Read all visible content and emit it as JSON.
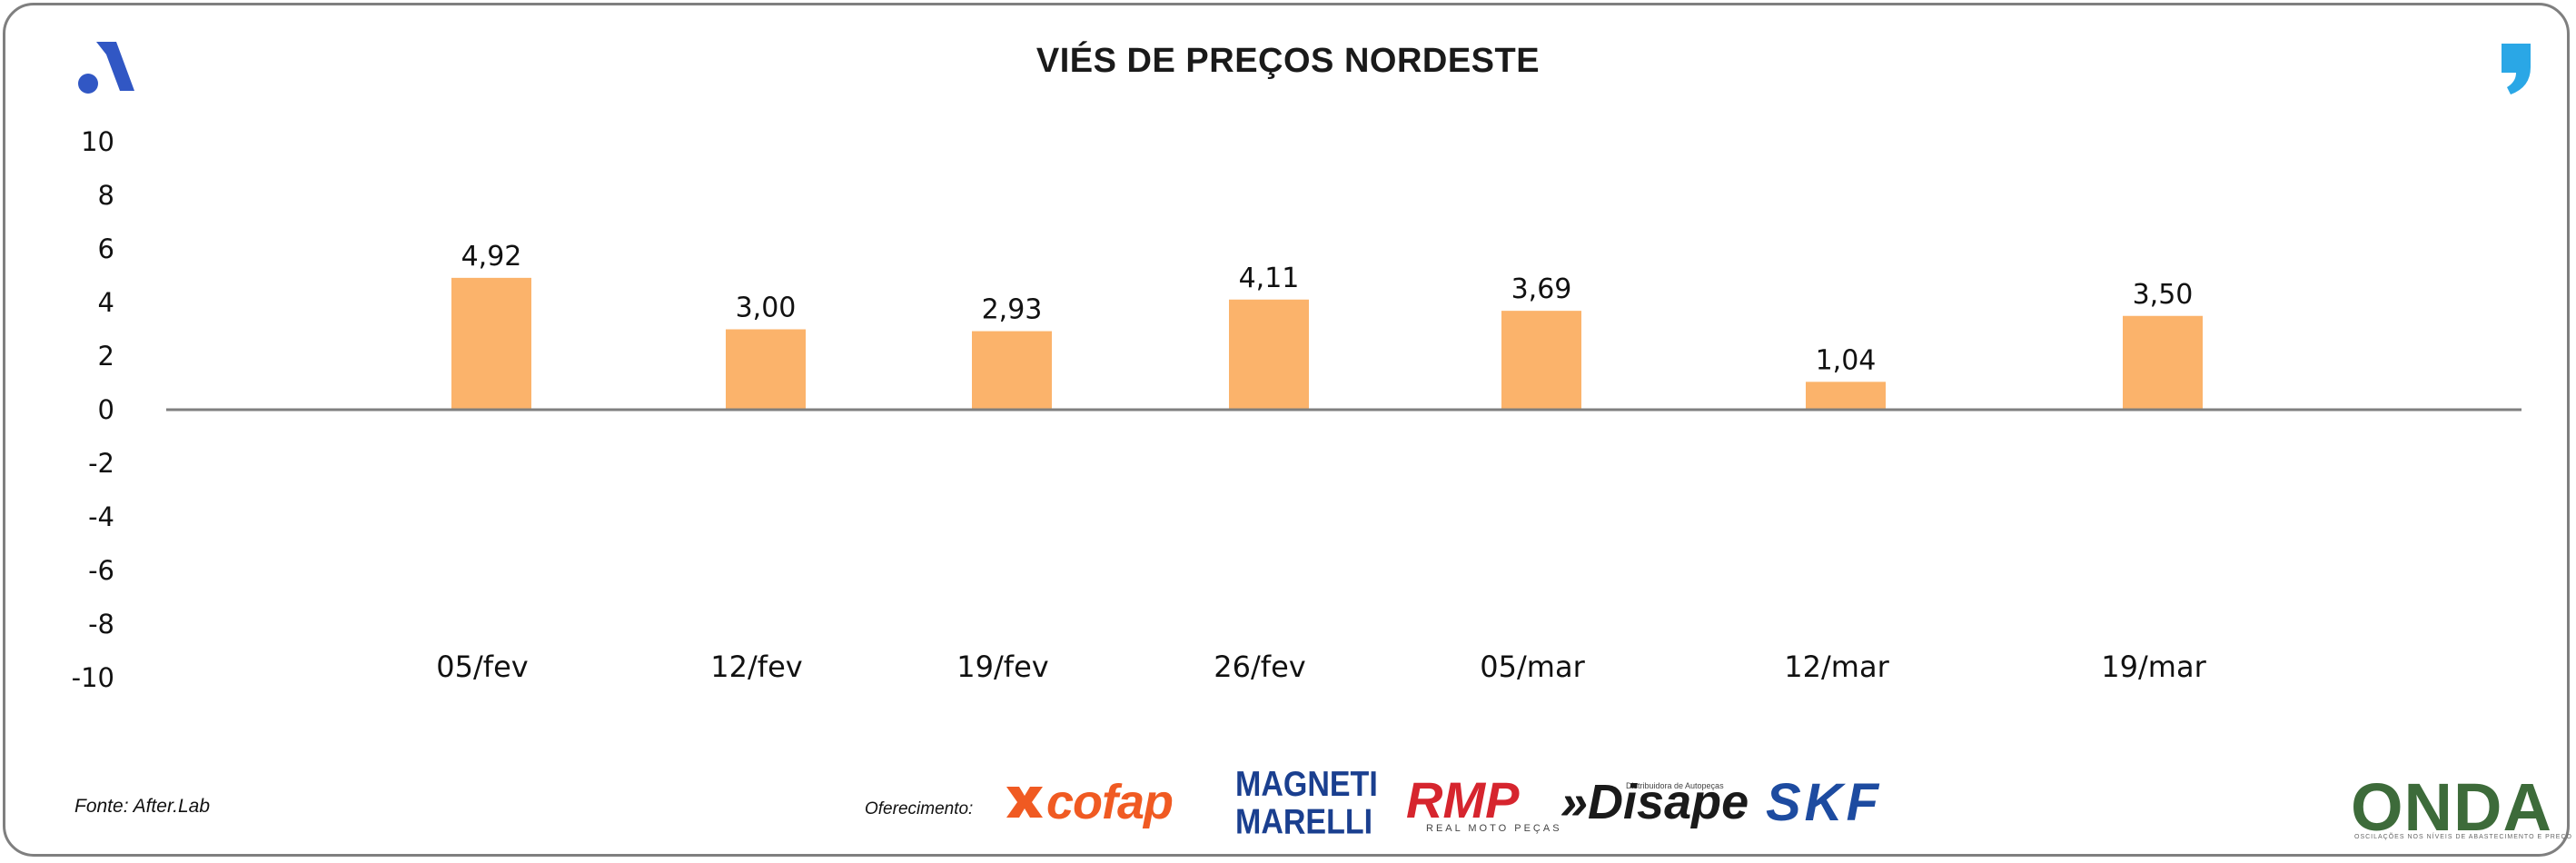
{
  "header": {
    "title": "VIÉS DE PREÇOS NORDESTE"
  },
  "chart_data": {
    "type": "bar",
    "title": "VIÉS DE PREÇOS NORDESTE",
    "categories": [
      "05/fev",
      "12/fev",
      "19/fev",
      "26/fev",
      "05/mar",
      "12/mar",
      "19/mar"
    ],
    "values": [
      4.92,
      3.0,
      2.93,
      4.11,
      3.69,
      1.04,
      3.5
    ],
    "value_labels": [
      "4,92",
      "3,00",
      "2,93",
      "4,11",
      "3,69",
      "1,04",
      "3,50"
    ],
    "ylim": [
      -10,
      10
    ],
    "yticks": [
      10,
      8,
      6,
      4,
      2,
      0,
      -2,
      -4,
      -6,
      -8,
      -10
    ],
    "ytick_labels": [
      "10",
      "8",
      "6",
      "4",
      "2",
      "0",
      "-2",
      "-4",
      "-6",
      "-8",
      "-10"
    ],
    "xlabel": "",
    "ylabel": "",
    "grid": false,
    "legend": "none",
    "bar_color": "#fbb36b",
    "axis_color": "#7f7f7f"
  },
  "footer": {
    "source": "Fonte: After.Lab",
    "offer_label": "Oferecimento:",
    "sponsors": {
      "cofap": "cofap",
      "magneti_line1": "MAGNETI",
      "magneti_line2": "MARELLI",
      "rmp": "RMP",
      "rmp_sub": "REAL MOTO PEÇAS",
      "disape": "»Disape",
      "disape_sub": "Distribuidora de Autopeças",
      "skf": "SKF"
    },
    "onda": "ONDA",
    "onda_sub": "OSCILAÇÕES NOS NÍVEIS DE ABASTECIMENTO E PREÇO"
  },
  "colors": {
    "brand_blue": "#3157c4",
    "comma_blue": "#2aa7e6",
    "frame": "#7f7f7f"
  },
  "icons": {
    "top_left": "afterlab-a-logo-icon",
    "top_right": "comma-logo-icon"
  }
}
